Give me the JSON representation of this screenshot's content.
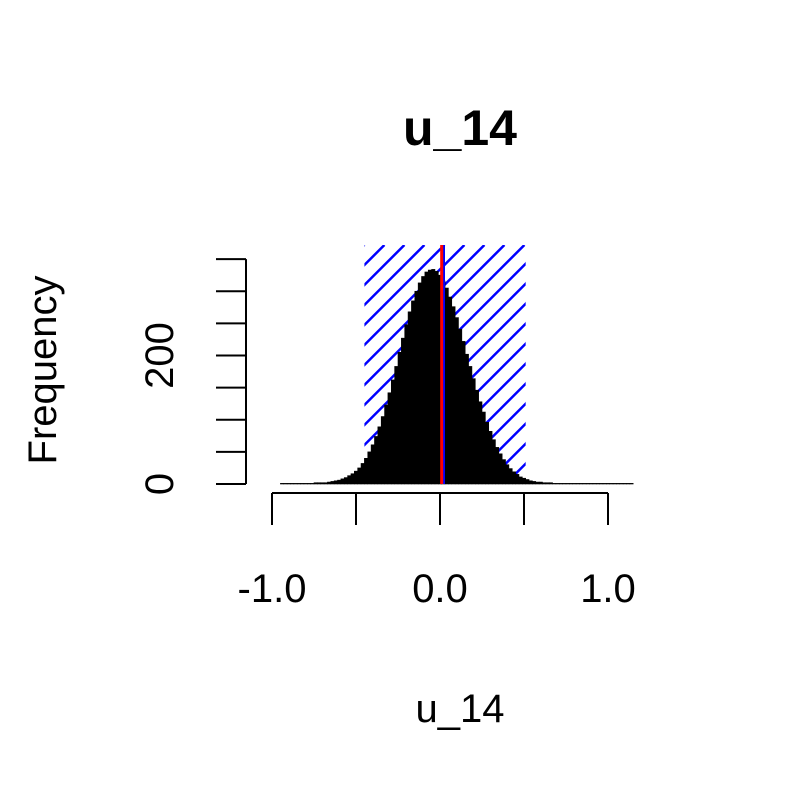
{
  "chart_data": {
    "type": "bar",
    "title": "u_14",
    "xlabel": "u_14",
    "ylabel": "Frequency",
    "xlim": [
      -1.0,
      1.3
    ],
    "ylim": [
      0,
      350
    ],
    "x_ticks": [
      -1.0,
      -0.5,
      0.0,
      0.5,
      1.0
    ],
    "x_tick_labels": [
      {
        "value": -1.0,
        "label": "-1.0"
      },
      {
        "value": 0.0,
        "label": "0.0"
      },
      {
        "value": 1.0,
        "label": "1.0"
      }
    ],
    "y_ticks": [
      0,
      50,
      100,
      150,
      200,
      250,
      300,
      350
    ],
    "y_tick_labels": [
      {
        "value": 0,
        "label": "0"
      },
      {
        "value": 200,
        "label": "200"
      }
    ],
    "histogram": {
      "x_start": -0.95,
      "bin_width": 0.02,
      "counts": [
        1,
        1,
        1,
        1,
        1,
        1,
        1,
        1,
        1,
        1,
        2,
        2,
        2,
        2,
        3,
        4,
        5,
        6,
        8,
        10,
        13,
        16,
        20,
        25,
        32,
        40,
        50,
        61,
        74,
        89,
        105,
        123,
        142,
        162,
        183,
        205,
        227,
        248,
        268,
        285,
        300,
        313,
        323,
        330,
        333,
        334,
        331,
        325,
        316,
        305,
        291,
        276,
        259,
        241,
        222,
        202,
        183,
        164,
        146,
        128,
        112,
        96,
        82,
        69,
        57,
        47,
        38,
        30,
        24,
        19,
        15,
        11,
        9,
        7,
        5,
        4,
        3,
        3,
        2,
        2,
        2,
        1,
        1,
        1,
        1,
        1,
        1,
        1,
        1,
        1,
        1,
        1,
        1,
        1,
        1,
        1,
        1,
        1,
        1,
        1,
        1,
        1,
        1,
        1,
        1
      ]
    },
    "shaded_interval": [
      -0.45,
      0.51
    ],
    "shaded_top": 372,
    "mean_line_x": 0.01,
    "ref_line_x": 0.0,
    "colors": {
      "bars": "#000000",
      "hatch": "#0000ff",
      "mean_line": "#ff0000",
      "ref_line": "#0000ff"
    },
    "grid": false
  }
}
